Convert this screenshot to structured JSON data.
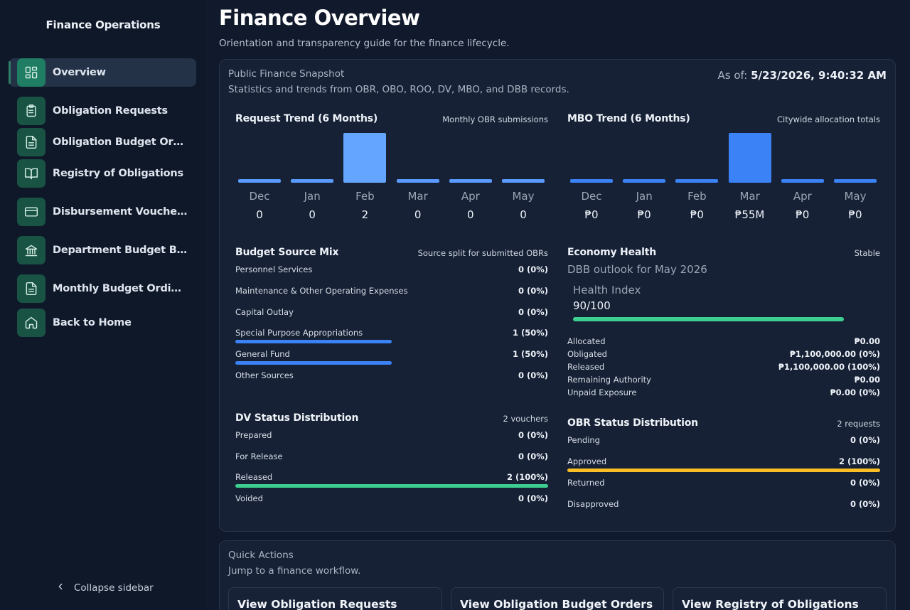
{
  "sidebar": {
    "brand": "Finance Operations",
    "items": [
      {
        "label": "Overview",
        "icon": "dashboard-icon",
        "active": true
      },
      {
        "label": "Obligation Requests",
        "icon": "clipboard-icon"
      },
      {
        "label": "Obligation Budget Orders",
        "icon": "document-icon"
      },
      {
        "label": "Registry of Obligations",
        "icon": "book-icon"
      },
      {
        "label": "Disbursement Vouchers",
        "icon": "card-icon"
      },
      {
        "label": "Department Budget Book",
        "icon": "bank-icon"
      },
      {
        "label": "Monthly Budget Ordinan...",
        "icon": "document-icon"
      },
      {
        "label": "Back to Home",
        "icon": "home-icon"
      }
    ],
    "collapse_label": "Collapse sidebar"
  },
  "header": {
    "title": "Finance Overview",
    "subtitle": "Orientation and transparency guide for the finance lifecycle."
  },
  "snapshot": {
    "title": "Public Finance Snapshot",
    "subtitle": "Statistics and trends from OBR, OBO, ROO, DV, MBO, and DBB records.",
    "asof_label": "As of:",
    "asof_value": "5/23/2026, 9:40:32 AM"
  },
  "request_trend": {
    "title": "Request Trend (6 Months)",
    "note": "Monthly OBR submissions",
    "color": "#5b9bff",
    "highlight": "#64a6ff"
  },
  "mbo_trend": {
    "title": "MBO Trend (6 Months)",
    "note": "Citywide allocation totals",
    "color": "#3b82f6"
  },
  "chart_data": [
    {
      "type": "bar",
      "title": "Request Trend (6 Months)",
      "categories": [
        "Dec",
        "Jan",
        "Feb",
        "Mar",
        "Apr",
        "May"
      ],
      "values": [
        0,
        0,
        2,
        0,
        0,
        0
      ],
      "labels": [
        "0",
        "0",
        "2",
        "0",
        "0",
        "0"
      ]
    },
    {
      "type": "bar",
      "title": "MBO Trend (6 Months)",
      "categories": [
        "Dec",
        "Jan",
        "Feb",
        "Mar",
        "Apr",
        "May"
      ],
      "values": [
        0,
        0,
        0,
        55000000,
        0,
        0
      ],
      "labels": [
        "₱0",
        "₱0",
        "₱0",
        "₱55M",
        "₱0",
        "₱0"
      ]
    }
  ],
  "budget_source": {
    "title": "Budget Source Mix",
    "note": "Source split for submitted OBRs",
    "color": "#3b82f6",
    "rows": [
      {
        "label": "Personnel Services",
        "value": "0 (0%)",
        "fraction": 0
      },
      {
        "label": "Maintenance & Other Operating Expenses",
        "value": "0 (0%)",
        "fraction": 0
      },
      {
        "label": "Capital Outlay",
        "value": "0 (0%)",
        "fraction": 0
      },
      {
        "label": "Special Purpose Appropriations",
        "value": "1 (50%)",
        "fraction": 0.5
      },
      {
        "label": "General Fund",
        "value": "1 (50%)",
        "fraction": 0.5
      },
      {
        "label": "Other Sources",
        "value": "0 (0%)",
        "fraction": 0
      }
    ]
  },
  "economy": {
    "title": "Economy Health",
    "status": "Stable",
    "subtitle": "DBB outlook for May 2026",
    "health_label": "Health Index",
    "health_value": "90/100",
    "health_fraction": 0.9,
    "health_color": "#3ccf91",
    "rows": [
      {
        "label": "Allocated",
        "value": "₱0.00"
      },
      {
        "label": "Obligated",
        "value": "₱1,100,000.00 (0%)"
      },
      {
        "label": "Released",
        "value": "₱1,100,000.00 (100%)"
      },
      {
        "label": "Remaining Authority",
        "value": "₱0.00"
      },
      {
        "label": "Unpaid Exposure",
        "value": "₱0.00 (0%)"
      }
    ]
  },
  "dv_status": {
    "title": "DV Status Distribution",
    "note": "2 vouchers",
    "color": "#3ccf91",
    "rows": [
      {
        "label": "Prepared",
        "value": "0 (0%)",
        "fraction": 0
      },
      {
        "label": "For Release",
        "value": "0 (0%)",
        "fraction": 0
      },
      {
        "label": "Released",
        "value": "2 (100%)",
        "fraction": 1
      },
      {
        "label": "Voided",
        "value": "0 (0%)",
        "fraction": 0
      }
    ]
  },
  "obr_status": {
    "title": "OBR Status Distribution",
    "note": "2 requests",
    "color": "#fbbf24",
    "rows": [
      {
        "label": "Pending",
        "value": "0 (0%)",
        "fraction": 0
      },
      {
        "label": "Approved",
        "value": "2 (100%)",
        "fraction": 1
      },
      {
        "label": "Returned",
        "value": "0 (0%)",
        "fraction": 0
      },
      {
        "label": "Disapproved",
        "value": "0 (0%)",
        "fraction": 0
      }
    ]
  },
  "quick_actions": {
    "title": "Quick Actions",
    "subtitle": "Jump to a finance workflow.",
    "buttons": [
      "View Obligation Requests",
      "View Obligation Budget Orders",
      "View Registry of Obligations"
    ]
  }
}
